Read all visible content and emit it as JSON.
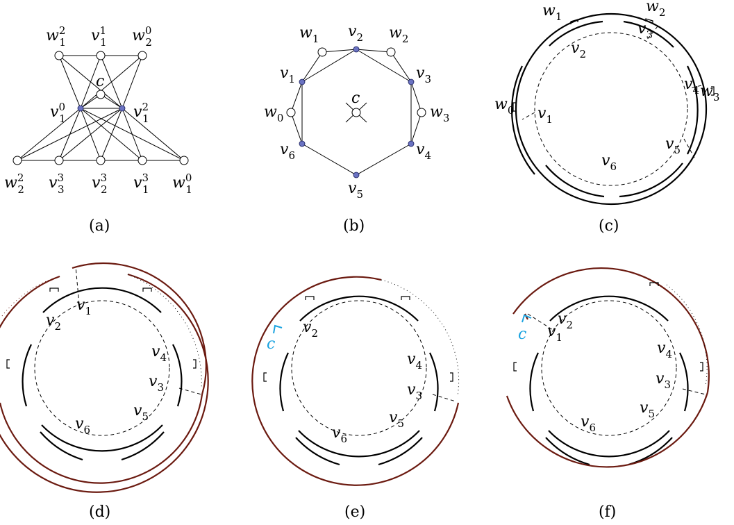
{
  "captions": {
    "a": "(a)",
    "b": "(b)",
    "c": "(c)",
    "d": "(d)",
    "e": "(e)",
    "f": "(f)"
  },
  "panel_a": {
    "labels": {
      "w12": "w",
      "w12_sup": "2",
      "w12_sub": "1",
      "v11": "v",
      "v11_sup": "1",
      "v11_sub": "1",
      "w20": "w",
      "w20_sup": "0",
      "w20_sub": "2",
      "c": "c",
      "v10": "v",
      "v10_sup": "0",
      "v10_sub": "1",
      "v12": "v",
      "v12_sup": "2",
      "v12_sub": "1",
      "w22": "w",
      "w22_sup": "2",
      "w22_sub": "2",
      "v33": "v",
      "v33_sup": "3",
      "v33_sub": "3",
      "v23": "v",
      "v23_sup": "3",
      "v23_sub": "2",
      "v13": "v",
      "v13_sup": "3",
      "v13_sub": "1",
      "w10": "w",
      "w10_sup": "0",
      "w10_sub": "1"
    }
  },
  "panel_b": {
    "labels": {
      "w1": "w",
      "w1_sub": "1",
      "v2": "v",
      "v2_sub": "2",
      "w2": "w",
      "w2_sub": "2",
      "v1": "v",
      "v1_sub": "1",
      "v3": "v",
      "v3_sub": "3",
      "c": "c",
      "w0": "w",
      "w0_sub": "0",
      "w3": "w",
      "w3_sub": "3",
      "v6": "v",
      "v6_sub": "6",
      "v4": "v",
      "v4_sub": "4",
      "v5": "v",
      "v5_sub": "5"
    }
  },
  "panel_c": {
    "labels": {
      "w1": "w",
      "w1_sub": "1",
      "w2": "w",
      "w2_sub": "2",
      "v3": "v",
      "v3_sub": "3",
      "v2": "v",
      "v2_sub": "2",
      "v4": "v",
      "v4_sub": "4",
      "w3": "w",
      "w3_sub": "3",
      "w0": "w",
      "w0_sub": "0",
      "v1": "v",
      "v1_sub": "1",
      "v5": "v",
      "v5_sub": "5",
      "v6": "v",
      "v6_sub": "6"
    }
  },
  "panel_d": {
    "labels": {
      "v1": "v",
      "v1_sub": "1",
      "v2": "v",
      "v2_sub": "2",
      "v4": "v",
      "v4_sub": "4",
      "v3": "v",
      "v3_sub": "3",
      "v5": "v",
      "v5_sub": "5",
      "v6": "v",
      "v6_sub": "6"
    }
  },
  "panel_e": {
    "labels": {
      "c": "c",
      "v2": "v",
      "v2_sub": "2",
      "v4": "v",
      "v4_sub": "4",
      "v3": "v",
      "v3_sub": "3",
      "v5": "v",
      "v5_sub": "5",
      "v6": "v",
      "v6_sub": "6"
    }
  },
  "panel_f": {
    "labels": {
      "c": "c",
      "v1": "v",
      "v1_sub": "1",
      "v2": "v",
      "v2_sub": "2",
      "v4": "v",
      "v4_sub": "4",
      "v3": "v",
      "v3_sub": "3",
      "v5": "v",
      "v5_sub": "5",
      "v6": "v",
      "v6_sub": "6"
    }
  },
  "colors": {
    "black": "#000000",
    "brown": "#6b1a10",
    "cyan": "#1aa3e0",
    "vertex_fill": "#6b73c2"
  }
}
